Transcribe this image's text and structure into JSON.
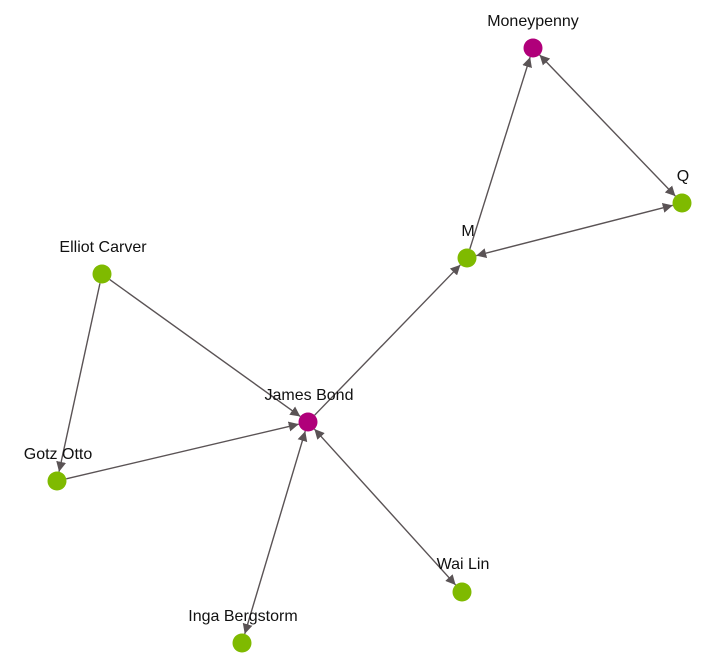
{
  "colors": {
    "edge": "#5a5355",
    "node_primary": "#b0007a",
    "node_secondary": "#7fba00"
  },
  "nodes": [
    {
      "id": "moneypenny",
      "label": "Moneypenny",
      "type": "primary"
    },
    {
      "id": "q",
      "label": "Q",
      "type": "secondary"
    },
    {
      "id": "m",
      "label": "M",
      "type": "secondary"
    },
    {
      "id": "elliot",
      "label": "Elliot Carver",
      "type": "secondary"
    },
    {
      "id": "bond",
      "label": "James Bond",
      "type": "primary"
    },
    {
      "id": "gotz",
      "label": "Gotz Otto",
      "type": "secondary"
    },
    {
      "id": "wailin",
      "label": "Wai Lin",
      "type": "secondary"
    },
    {
      "id": "inga",
      "label": "Inga Bergstorm",
      "type": "secondary"
    }
  ],
  "edges": [
    {
      "from": "m",
      "to": "moneypenny",
      "arrow_start": false,
      "arrow_end": true
    },
    {
      "from": "moneypenny",
      "to": "q",
      "arrow_start": true,
      "arrow_end": true
    },
    {
      "from": "m",
      "to": "q",
      "arrow_start": true,
      "arrow_end": true
    },
    {
      "from": "bond",
      "to": "m",
      "arrow_start": false,
      "arrow_end": true
    },
    {
      "from": "elliot",
      "to": "bond",
      "arrow_start": false,
      "arrow_end": true
    },
    {
      "from": "elliot",
      "to": "gotz",
      "arrow_start": false,
      "arrow_end": true
    },
    {
      "from": "gotz",
      "to": "bond",
      "arrow_start": false,
      "arrow_end": true
    },
    {
      "from": "inga",
      "to": "bond",
      "arrow_start": true,
      "arrow_end": true
    },
    {
      "from": "wailin",
      "to": "bond",
      "arrow_start": true,
      "arrow_end": true
    }
  ]
}
